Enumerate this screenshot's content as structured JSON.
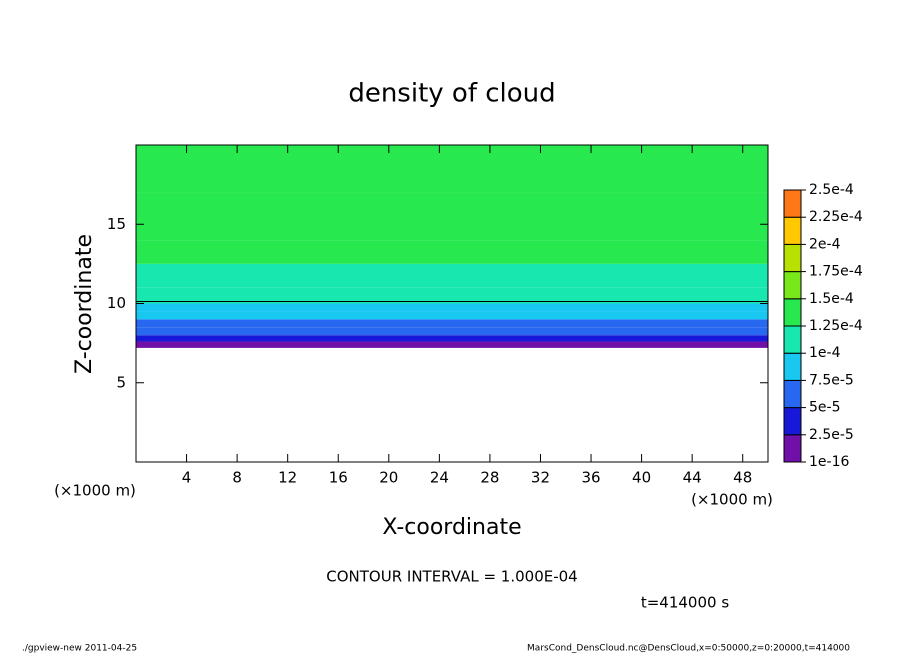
{
  "chart_data": {
    "type": "contour",
    "title": "density of cloud",
    "x_label": "X-coordinate",
    "y_label": "Z-coordinate",
    "x_unit": "(×1000 m)",
    "y_unit": "(×1000 m)",
    "xlim": [
      0,
      50
    ],
    "xticks": [
      4,
      8,
      12,
      16,
      20,
      24,
      28,
      32,
      36,
      40,
      44,
      48
    ],
    "ylim": [
      0,
      20
    ],
    "yticks": [
      5,
      10,
      15
    ],
    "z_edges": [
      7.2,
      7.6,
      8.0,
      8.5,
      9.0,
      9.5,
      10.0,
      11.0,
      12.5,
      14.0,
      17.0,
      20.0
    ],
    "values": [
      1e-05,
      3e-05,
      5e-05,
      7e-05,
      8e-05,
      9e-05,
      0.00011,
      0.00012,
      0.00013,
      0.00014,
      0.00013
    ],
    "contour_level": 0.0001,
    "levels": [
      {
        "value": 1e-16,
        "label": "1e-16"
      },
      {
        "value": 2.5e-05,
        "label": "2.5e-5"
      },
      {
        "value": 5e-05,
        "label": "5e-5"
      },
      {
        "value": 7.5e-05,
        "label": "7.5e-5"
      },
      {
        "value": 0.0001,
        "label": "1e-4"
      },
      {
        "value": 0.000125,
        "label": "1.25e-4"
      },
      {
        "value": 0.00015,
        "label": "1.5e-4"
      },
      {
        "value": 0.000175,
        "label": "1.75e-4"
      },
      {
        "value": 0.0002,
        "label": "2e-4"
      },
      {
        "value": 0.000225,
        "label": "2.25e-4"
      },
      {
        "value": 0.00025,
        "label": "2.5e-4"
      }
    ],
    "colors": [
      "#7010a8",
      "#1818d8",
      "#2868f0",
      "#18c8f0",
      "#18e8b0",
      "#28e850",
      "#78e818",
      "#b8e000",
      "#ffc800",
      "#ff7818"
    ],
    "contour_interval_label": "CONTOUR INTERVAL = 1.000E-04",
    "time_label": "t=414000 s",
    "footer_left": "./gpview-new  2011-04-25",
    "footer_right": "MarsCond_DensCloud.nc@DensCloud,x=0:50000,z=0:20000,t=414000"
  }
}
